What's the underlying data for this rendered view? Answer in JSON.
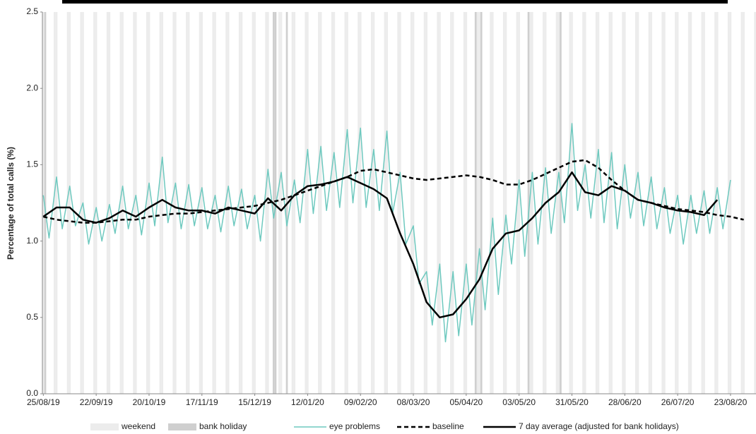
{
  "chart_data": {
    "type": "line",
    "y_label": "Percentage of total calls (%)",
    "xlim": [
      "25/08/19",
      "05/09/20"
    ],
    "xticks": [
      "25/08/19",
      "22/09/19",
      "20/10/19",
      "17/11/19",
      "15/12/19",
      "12/01/20",
      "09/02/20",
      "08/03/20",
      "05/04/20",
      "03/05/20",
      "31/05/20",
      "28/06/20",
      "26/07/20",
      "23/08/20"
    ],
    "ylim": [
      0,
      2.5
    ],
    "yticks": [
      {
        "value": 0,
        "label": "0.0"
      },
      0.5,
      {
        "value": 1,
        "label": "1.0"
      },
      1.5,
      {
        "value": 2,
        "label": "2.0"
      },
      2.5
    ],
    "weekend": {
      "name": "weekend",
      "color": "#ececec"
    },
    "bank_holidays": {
      "name": "bank holiday",
      "color": "#cfcfcf",
      "dates": [
        "26/08/19",
        "25/12/19",
        "26/12/19",
        "01/01/20",
        "10/04/20",
        "13/04/20",
        "08/05/20",
        "25/05/20"
      ]
    },
    "x": [
      "25/08/19",
      "01/09/19",
      "08/09/19",
      "15/09/19",
      "22/09/19",
      "29/09/19",
      "06/10/19",
      "13/10/19",
      "20/10/19",
      "27/10/19",
      "03/11/19",
      "10/11/19",
      "17/11/19",
      "24/11/19",
      "01/12/19",
      "08/12/19",
      "15/12/19",
      "22/12/19",
      "29/12/19",
      "05/01/20",
      "12/01/20",
      "19/01/20",
      "26/01/20",
      "02/02/20",
      "09/02/20",
      "16/02/20",
      "23/02/20",
      "01/03/20",
      "08/03/20",
      "15/03/20",
      "22/03/20",
      "29/03/20",
      "05/04/20",
      "12/04/20",
      "19/04/20",
      "26/04/20",
      "03/05/20",
      "10/05/20",
      "17/05/20",
      "24/05/20",
      "31/05/20",
      "07/06/20",
      "14/06/20",
      "21/06/20",
      "28/06/20",
      "05/07/20",
      "12/07/20",
      "19/07/20",
      "26/07/20",
      "02/08/20",
      "09/08/20",
      "16/08/20",
      "23/08/20",
      "30/08/20"
    ],
    "series": [
      {
        "name": "eye problems",
        "color": "#6ec9bf",
        "style": "solid",
        "width": 1.5,
        "x": [
          "25/08/19",
          "28/08/19",
          "01/09/19",
          "04/09/19",
          "08/09/19",
          "11/09/19",
          "15/09/19",
          "18/09/19",
          "22/09/19",
          "25/09/19",
          "29/09/19",
          "02/10/19",
          "06/10/19",
          "09/10/19",
          "13/10/19",
          "16/10/19",
          "20/10/19",
          "23/10/19",
          "27/10/19",
          "30/10/19",
          "03/11/19",
          "06/11/19",
          "10/11/19",
          "13/11/19",
          "17/11/19",
          "20/11/19",
          "24/11/19",
          "27/11/19",
          "01/12/19",
          "04/12/19",
          "08/12/19",
          "11/12/19",
          "15/12/19",
          "18/12/19",
          "22/12/19",
          "25/12/19",
          "29/12/19",
          "01/01/20",
          "05/01/20",
          "08/01/20",
          "12/01/20",
          "15/01/20",
          "19/01/20",
          "22/01/20",
          "26/01/20",
          "29/01/20",
          "02/02/20",
          "05/02/20",
          "09/02/20",
          "12/02/20",
          "16/02/20",
          "19/02/20",
          "23/02/20",
          "26/02/20",
          "01/03/20",
          "04/03/20",
          "08/03/20",
          "11/03/20",
          "15/03/20",
          "18/03/20",
          "22/03/20",
          "25/03/20",
          "29/03/20",
          "01/04/20",
          "05/04/20",
          "08/04/20",
          "12/04/20",
          "15/04/20",
          "19/04/20",
          "22/04/20",
          "26/04/20",
          "29/04/20",
          "03/05/20",
          "06/05/20",
          "10/05/20",
          "13/05/20",
          "17/05/20",
          "20/05/20",
          "24/05/20",
          "27/05/20",
          "31/05/20",
          "03/06/20",
          "07/06/20",
          "10/06/20",
          "14/06/20",
          "17/06/20",
          "21/06/20",
          "24/06/20",
          "28/06/20",
          "01/07/20",
          "05/07/20",
          "08/07/20",
          "12/07/20",
          "15/07/20",
          "19/07/20",
          "22/07/20",
          "26/07/20",
          "29/07/20",
          "02/08/20",
          "05/08/20",
          "09/08/20",
          "12/08/20",
          "16/08/20",
          "19/08/20",
          "23/08/20"
        ],
        "values": [
          1.3,
          1.02,
          1.42,
          1.08,
          1.36,
          1.1,
          1.25,
          0.98,
          1.22,
          1.0,
          1.24,
          1.05,
          1.36,
          1.08,
          1.3,
          1.04,
          1.38,
          1.1,
          1.55,
          1.12,
          1.38,
          1.08,
          1.37,
          1.1,
          1.35,
          1.08,
          1.3,
          1.06,
          1.36,
          1.1,
          1.34,
          1.08,
          1.3,
          1.0,
          1.47,
          1.15,
          1.45,
          1.1,
          1.4,
          1.12,
          1.6,
          1.18,
          1.62,
          1.2,
          1.58,
          1.22,
          1.73,
          1.25,
          1.74,
          1.22,
          1.6,
          1.2,
          1.72,
          1.18,
          1.45,
          0.98,
          1.1,
          0.72,
          0.8,
          0.45,
          0.85,
          0.34,
          0.8,
          0.38,
          0.85,
          0.45,
          0.95,
          0.55,
          1.15,
          0.65,
          1.17,
          0.85,
          1.4,
          0.9,
          1.45,
          0.98,
          1.48,
          1.05,
          1.45,
          1.12,
          1.77,
          1.2,
          1.5,
          1.15,
          1.6,
          1.12,
          1.58,
          1.08,
          1.5,
          1.15,
          1.45,
          1.1,
          1.42,
          1.08,
          1.35,
          1.05,
          1.3,
          0.98,
          1.3,
          1.05,
          1.33,
          1.05,
          1.35,
          1.08,
          1.4
        ]
      },
      {
        "name": "baseline",
        "color": "#000000",
        "style": "dashed",
        "width": 2.5,
        "values": [
          1.16,
          1.14,
          1.13,
          1.12,
          1.12,
          1.13,
          1.14,
          1.14,
          1.16,
          1.17,
          1.18,
          1.18,
          1.19,
          1.2,
          1.21,
          1.22,
          1.23,
          1.25,
          1.27,
          1.3,
          1.33,
          1.36,
          1.39,
          1.42,
          1.46,
          1.47,
          1.45,
          1.43,
          1.41,
          1.4,
          1.41,
          1.42,
          1.43,
          1.42,
          1.4,
          1.37,
          1.37,
          1.4,
          1.44,
          1.48,
          1.52,
          1.53,
          1.48,
          1.4,
          1.33,
          1.27,
          1.25,
          1.23,
          1.21,
          1.2,
          1.19,
          1.17,
          1.16,
          1.14
        ]
      },
      {
        "name": "7 day average (adjusted for bank holidays)",
        "color": "#000000",
        "style": "solid",
        "width": 2.5,
        "values": [
          1.16,
          1.22,
          1.22,
          1.14,
          1.12,
          1.15,
          1.2,
          1.16,
          1.22,
          1.27,
          1.22,
          1.2,
          1.2,
          1.18,
          1.22,
          1.2,
          1.18,
          1.28,
          1.2,
          1.3,
          1.36,
          1.37,
          1.39,
          1.42,
          1.38,
          1.34,
          1.28,
          1.05,
          0.85,
          0.6,
          0.5,
          0.52,
          0.62,
          0.75,
          0.95,
          1.05,
          1.07,
          1.15,
          1.25,
          1.32,
          1.45,
          1.32,
          1.3,
          1.36,
          1.33,
          1.27,
          1.25,
          1.22,
          1.2,
          1.19,
          1.17,
          1.27,
          null,
          null
        ]
      }
    ]
  }
}
